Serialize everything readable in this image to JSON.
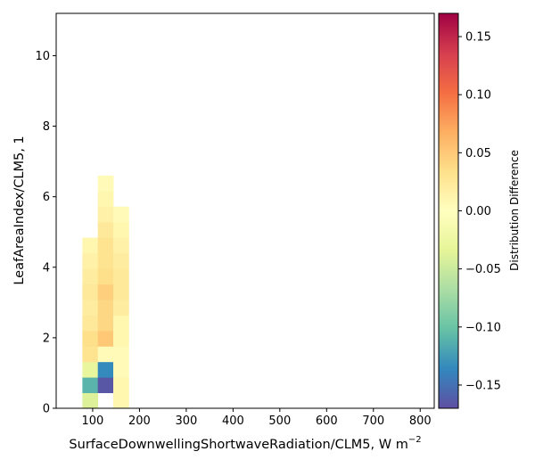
{
  "chart_data": {
    "type": "heatmap",
    "xlabel": "SurfaceDownwellingShortwaveRadiation/CLM5,  W m",
    "xlabel_sup": "−2",
    "ylabel": "LeafAreaIndex/CLM5,  1",
    "colorbar_label": "Distribution Difference",
    "colormap": "Spectral_r",
    "xlim": [
      22,
      830
    ],
    "ylim": [
      0,
      11.2
    ],
    "clim": [
      -0.17,
      0.17
    ],
    "x_ticks": [
      100,
      200,
      300,
      400,
      500,
      600,
      700,
      800
    ],
    "x_tick_labels": [
      "100",
      "200",
      "300",
      "400",
      "500",
      "600",
      "700",
      "800"
    ],
    "y_ticks": [
      0,
      2,
      4,
      6,
      8,
      10
    ],
    "y_tick_labels": [
      "0",
      "2",
      "4",
      "6",
      "8",
      "10"
    ],
    "colorbar_ticks": [
      -0.15,
      -0.1,
      -0.05,
      0.0,
      0.05,
      0.1,
      0.15
    ],
    "colorbar_tick_labels": [
      "−0.15",
      "−0.10",
      "−0.05",
      "0.00",
      "0.05",
      "0.10",
      "0.15"
    ],
    "bin_width_x": 33,
    "bin_height_y": 0.44,
    "columns": [
      {
        "x_start": 78,
        "y_start": 0,
        "values": [
          -0.04,
          -0.11,
          -0.03,
          0.03,
          0.035,
          0.025,
          0.02,
          0.025,
          0.02,
          0.015,
          0.01
        ]
      },
      {
        "x_start": 111,
        "y_start": 0.44,
        "values": [
          -0.165,
          -0.135,
          0.005,
          0.05,
          0.04,
          0.04,
          0.045,
          0.035,
          0.03,
          0.03,
          0.025,
          0.015,
          0.01,
          0.005
        ]
      },
      {
        "x_start": 144,
        "y_start": 0,
        "values": [
          0.01,
          0.01,
          0.005,
          0.005,
          0.01,
          0.01,
          0.02,
          0.025,
          0.025,
          0.02,
          0.015,
          0.01,
          0.005
        ]
      }
    ]
  }
}
